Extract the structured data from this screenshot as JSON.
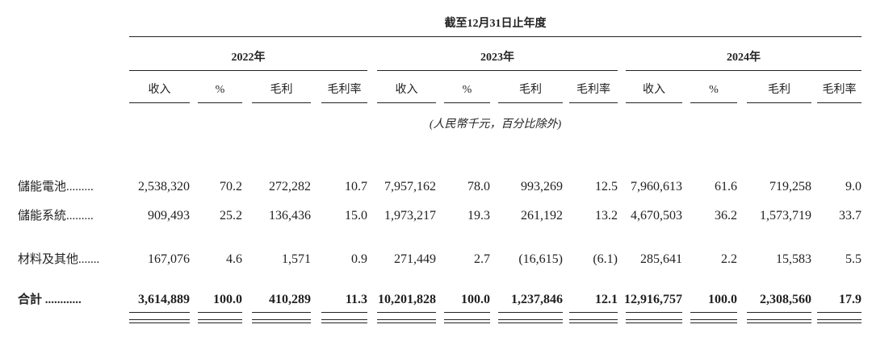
{
  "header": {
    "period": "截至12月31日止年度",
    "years": [
      "2022年",
      "2023年",
      "2024年"
    ],
    "columns": [
      "收入",
      "%",
      "毛利",
      "毛利率"
    ],
    "unit_note": "(人民幣千元，百分比除外)"
  },
  "table": {
    "rows": [
      {
        "label": "儲能電池.........",
        "cells": [
          "2,538,320",
          "70.2",
          "272,282",
          "10.7",
          "7,957,162",
          "78.0",
          "993,269",
          "12.5",
          "7,960,613",
          "61.6",
          "719,258",
          "9.0"
        ]
      },
      {
        "label": "儲能系統.........",
        "cells": [
          "909,493",
          "25.2",
          "136,436",
          "15.0",
          "1,973,217",
          "19.3",
          "261,192",
          "13.2",
          "4,670,503",
          "36.2",
          "1,573,719",
          "33.7"
        ]
      },
      {
        "label": "材料及其他.......",
        "cells": [
          "167,076",
          "4.6",
          "1,571",
          "0.9",
          "271,449",
          "2.7",
          "(16,615)",
          "(6.1)",
          "285,641",
          "2.2",
          "15,583",
          "5.5"
        ]
      },
      {
        "label": "合計 ............",
        "cells": [
          "3,614,889",
          "100.0",
          "410,289",
          "11.3",
          "10,201,828",
          "100.0",
          "1,237,846",
          "12.1",
          "12,916,757",
          "100.0",
          "2,308,560",
          "17.9"
        ]
      }
    ]
  }
}
